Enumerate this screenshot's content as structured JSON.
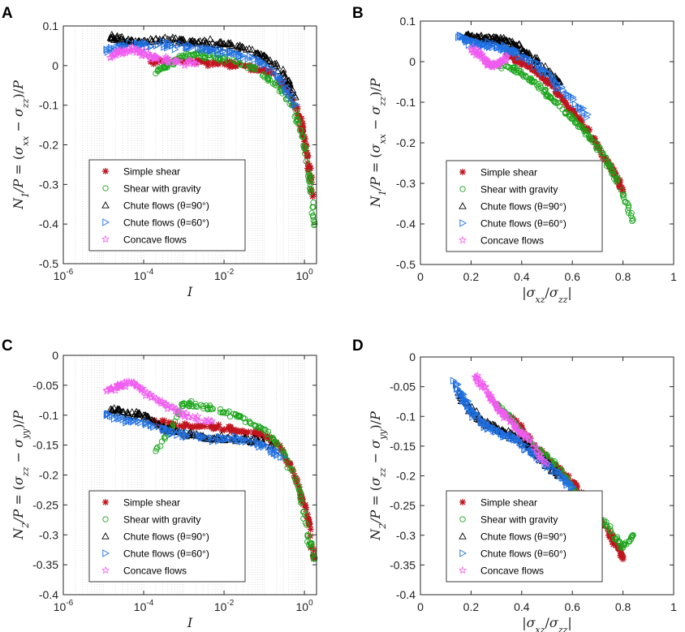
{
  "chart_data": [
    {
      "panel": "A",
      "type": "scatter",
      "xscale": "log",
      "xlim": [
        1e-06,
        2
      ],
      "ylim": [
        -0.5,
        0.1
      ],
      "xticks": [
        1e-06,
        0.0001,
        0.01,
        1
      ],
      "xtick_labels": [
        "10-6",
        "10-4",
        "10-2",
        "100"
      ],
      "yticks": [
        -0.5,
        -0.4,
        -0.3,
        -0.2,
        -0.1,
        0,
        0.1
      ],
      "ytick_labels": [
        "-0.5",
        "-0.4",
        "-0.3",
        "-0.2",
        "-0.1",
        "0",
        "0.1"
      ],
      "xlabel": "I",
      "ylabel": "N1/P = (σxx − σzz)/P",
      "grid": "log-minor",
      "legend_position": "bottom-left",
      "series": [
        {
          "name": "Simple shear",
          "x": [
            0.00015,
            0.001,
            0.004,
            0.015,
            0.05,
            0.15,
            0.4,
            0.8,
            1.0,
            1.3,
            1.6
          ],
          "y": [
            0.01,
            0.012,
            0.008,
            0.003,
            -0.005,
            -0.02,
            -0.06,
            -0.14,
            -0.18,
            -0.26,
            -0.33
          ]
        },
        {
          "name": "Shear with gravity",
          "x": [
            0.0002,
            0.0004,
            0.0008,
            0.002,
            0.006,
            0.02,
            0.06,
            0.2,
            0.5,
            0.9,
            1.4,
            1.8
          ],
          "y": [
            -0.02,
            0.0,
            0.02,
            0.03,
            0.02,
            0.01,
            -0.01,
            -0.05,
            -0.1,
            -0.18,
            -0.3,
            -0.4
          ]
        },
        {
          "name": "Chute flows (θ=90°)",
          "x": [
            1.5e-05,
            3e-05,
            8e-05,
            0.0003,
            0.001,
            0.003,
            0.01,
            0.03,
            0.1,
            0.3,
            0.6
          ],
          "y": [
            0.07,
            0.065,
            0.06,
            0.065,
            0.063,
            0.06,
            0.055,
            0.045,
            0.025,
            -0.02,
            -0.08
          ]
        },
        {
          "name": "Chute flows (θ=60°)",
          "x": [
            1.2e-05,
            3e-05,
            0.0001,
            0.0004,
            0.0015,
            0.005,
            0.02,
            0.08,
            0.25,
            0.6
          ],
          "y": [
            0.04,
            0.05,
            0.055,
            0.05,
            0.045,
            0.04,
            0.03,
            0.01,
            -0.03,
            -0.1
          ]
        },
        {
          "name": "Concave flows",
          "x": [
            1.5e-05,
            2.5e-05,
            5e-05,
            0.0001,
            0.0002,
            0.0006,
            0.002
          ],
          "y": [
            0.02,
            0.035,
            0.04,
            0.03,
            0.02,
            0.01,
            0.005
          ]
        }
      ]
    },
    {
      "panel": "B",
      "type": "scatter",
      "xscale": "linear",
      "xlim": [
        0,
        1
      ],
      "ylim": [
        -0.5,
        0.1
      ],
      "xticks": [
        0,
        0.2,
        0.4,
        0.6,
        0.8,
        1
      ],
      "xtick_labels": [
        "0",
        "0.2",
        "0.4",
        "0.6",
        "0.8",
        "1"
      ],
      "yticks": [
        -0.5,
        -0.4,
        -0.3,
        -0.2,
        -0.1,
        0,
        0.1
      ],
      "ytick_labels": [
        "-0.5",
        "-0.4",
        "-0.3",
        "-0.2",
        "-0.1",
        "0",
        "0.1"
      ],
      "xlabel": "|σxz/σzz|",
      "ylabel": "N1/P = (σxx − σzz)/P",
      "grid": "none",
      "legend_position": "bottom-left",
      "series": [
        {
          "name": "Simple shear",
          "x": [
            0.34,
            0.38,
            0.42,
            0.47,
            0.52,
            0.57,
            0.61,
            0.66,
            0.7,
            0.75,
            0.78,
            0.8
          ],
          "y": [
            0.02,
            0.005,
            -0.01,
            -0.03,
            -0.06,
            -0.1,
            -0.13,
            -0.17,
            -0.21,
            -0.26,
            -0.29,
            -0.32
          ]
        },
        {
          "name": "Shear with gravity",
          "x": [
            0.3,
            0.35,
            0.4,
            0.45,
            0.5,
            0.55,
            0.6,
            0.65,
            0.7,
            0.75,
            0.8,
            0.84
          ],
          "y": [
            -0.005,
            -0.015,
            -0.03,
            -0.05,
            -0.08,
            -0.11,
            -0.14,
            -0.17,
            -0.21,
            -0.26,
            -0.33,
            -0.39
          ]
        },
        {
          "name": "Chute flows (θ=90°)",
          "x": [
            0.18,
            0.22,
            0.26,
            0.3,
            0.34,
            0.38,
            0.42,
            0.48,
            0.55
          ],
          "y": [
            0.065,
            0.06,
            0.06,
            0.055,
            0.05,
            0.04,
            0.02,
            -0.01,
            -0.05
          ]
        },
        {
          "name": "Chute flows (θ=60°)",
          "x": [
            0.15,
            0.19,
            0.23,
            0.27,
            0.32,
            0.37,
            0.43,
            0.5,
            0.58,
            0.66
          ],
          "y": [
            0.06,
            0.05,
            0.045,
            0.04,
            0.035,
            0.025,
            0.005,
            -0.03,
            -0.08,
            -0.13
          ]
        },
        {
          "name": "Concave flows",
          "x": [
            0.2,
            0.23,
            0.26,
            0.28,
            0.31,
            0.34
          ],
          "y": [
            0.03,
            0.02,
            0.0,
            -0.01,
            -0.005,
            0.01
          ]
        }
      ]
    },
    {
      "panel": "C",
      "type": "scatter",
      "xscale": "log",
      "xlim": [
        1e-06,
        2
      ],
      "ylim": [
        -0.4,
        0
      ],
      "xticks": [
        1e-06,
        0.0001,
        0.01,
        1
      ],
      "xtick_labels": [
        "10-6",
        "10-4",
        "10-2",
        "100"
      ],
      "yticks": [
        -0.4,
        -0.35,
        -0.3,
        -0.25,
        -0.2,
        -0.15,
        -0.1,
        -0.05,
        0
      ],
      "ytick_labels": [
        "-0.4",
        "-0.35",
        "-0.3",
        "-0.25",
        "-0.2",
        "-0.15",
        "-0.1",
        "-0.05",
        "0"
      ],
      "xlabel": "I",
      "ylabel": "N2/P = (σzz − σyy)/P",
      "grid": "log-minor",
      "legend_position": "bottom-left",
      "series": [
        {
          "name": "Simple shear",
          "x": [
            0.00015,
            0.0005,
            0.002,
            0.006,
            0.02,
            0.07,
            0.2,
            0.5,
            0.9,
            1.3,
            1.7
          ],
          "y": [
            -0.11,
            -0.115,
            -0.12,
            -0.12,
            -0.125,
            -0.13,
            -0.145,
            -0.19,
            -0.24,
            -0.28,
            -0.34
          ]
        },
        {
          "name": "Shear with gravity",
          "x": [
            0.0002,
            0.0005,
            0.001,
            0.003,
            0.01,
            0.03,
            0.1,
            0.3,
            0.7,
            1.2,
            1.8
          ],
          "y": [
            -0.16,
            -0.12,
            -0.08,
            -0.085,
            -0.095,
            -0.105,
            -0.125,
            -0.16,
            -0.22,
            -0.3,
            -0.34
          ]
        },
        {
          "name": "Chute flows (θ=90°)",
          "x": [
            1.5e-05,
            4e-05,
            0.0001,
            0.0003,
            0.001,
            0.003,
            0.01,
            0.04,
            0.15
          ],
          "y": [
            -0.09,
            -0.095,
            -0.1,
            -0.12,
            -0.13,
            -0.135,
            -0.14,
            -0.14,
            -0.15
          ]
        },
        {
          "name": "Chute flows (θ=60°)",
          "x": [
            1.2e-05,
            4e-05,
            0.00015,
            0.0005,
            0.002,
            0.008,
            0.03,
            0.1,
            0.3
          ],
          "y": [
            -0.1,
            -0.11,
            -0.115,
            -0.13,
            -0.135,
            -0.14,
            -0.14,
            -0.15,
            -0.17
          ]
        },
        {
          "name": "Concave flows",
          "x": [
            1.2e-05,
            2.5e-05,
            5e-05,
            0.0001,
            0.0003,
            0.001,
            0.005
          ],
          "y": [
            -0.06,
            -0.05,
            -0.045,
            -0.06,
            -0.08,
            -0.1,
            -0.11
          ]
        }
      ]
    },
    {
      "panel": "D",
      "type": "scatter",
      "xscale": "linear",
      "xlim": [
        0,
        1
      ],
      "ylim": [
        -0.4,
        0
      ],
      "xticks": [
        0,
        0.2,
        0.4,
        0.6,
        0.8,
        1
      ],
      "xtick_labels": [
        "0",
        "0.2",
        "0.4",
        "0.6",
        "0.8",
        "1"
      ],
      "yticks": [
        -0.4,
        -0.35,
        -0.3,
        -0.25,
        -0.2,
        -0.15,
        -0.1,
        -0.05,
        0
      ],
      "ytick_labels": [
        "-0.4",
        "-0.35",
        "-0.3",
        "-0.25",
        "-0.2",
        "-0.15",
        "-0.1",
        "-0.05",
        "0"
      ],
      "xlabel": "|σxz/σzz|",
      "ylabel": "N2/P = (σzz − σyy)/P",
      "grid": "none",
      "legend_position": "bottom-left",
      "series": [
        {
          "name": "Simple shear",
          "x": [
            0.35,
            0.4,
            0.45,
            0.5,
            0.55,
            0.6,
            0.65,
            0.7,
            0.75,
            0.78,
            0.8
          ],
          "y": [
            -0.1,
            -0.12,
            -0.15,
            -0.17,
            -0.19,
            -0.21,
            -0.24,
            -0.27,
            -0.3,
            -0.32,
            -0.34
          ]
        },
        {
          "name": "Shear with gravity",
          "x": [
            0.3,
            0.35,
            0.4,
            0.45,
            0.5,
            0.55,
            0.6,
            0.65,
            0.7,
            0.75,
            0.8,
            0.84
          ],
          "y": [
            -0.08,
            -0.1,
            -0.13,
            -0.15,
            -0.17,
            -0.19,
            -0.22,
            -0.25,
            -0.27,
            -0.29,
            -0.32,
            -0.3
          ]
        },
        {
          "name": "Chute flows (θ=90°)",
          "x": [
            0.15,
            0.2,
            0.25,
            0.3,
            0.35,
            0.4,
            0.45,
            0.5,
            0.55
          ],
          "y": [
            -0.06,
            -0.09,
            -0.11,
            -0.12,
            -0.13,
            -0.14,
            -0.16,
            -0.18,
            -0.2
          ]
        },
        {
          "name": "Chute flows (θ=60°)",
          "x": [
            0.13,
            0.17,
            0.2,
            0.24,
            0.28,
            0.33,
            0.38,
            0.44,
            0.5,
            0.56,
            0.6
          ],
          "y": [
            -0.04,
            -0.07,
            -0.09,
            -0.11,
            -0.12,
            -0.13,
            -0.14,
            -0.16,
            -0.18,
            -0.2,
            -0.22
          ]
        },
        {
          "name": "Concave flows",
          "x": [
            0.22,
            0.25,
            0.28,
            0.31,
            0.34,
            0.38,
            0.43,
            0.5
          ],
          "y": [
            -0.035,
            -0.05,
            -0.07,
            -0.09,
            -0.1,
            -0.12,
            -0.14,
            -0.18
          ]
        }
      ]
    }
  ],
  "legend": {
    "items": [
      "Simple shear",
      "Shear with gravity",
      "Chute flows (θ=90°)",
      "Chute flows (θ=60°)",
      "Concave flows"
    ]
  },
  "colors": {
    "Simple shear": "#c0141e",
    "Shear with gravity": "#1aa51a",
    "Chute flows (θ=90°)": "#000000",
    "Chute flows (θ=60°)": "#1f6fe0",
    "Concave flows": "#f05cf0"
  },
  "markers": {
    "Simple shear": "asterisk",
    "Shear with gravity": "circle",
    "Chute flows (θ=90°)": "triangle-up",
    "Chute flows (θ=60°)": "triangle-right",
    "Concave flows": "star"
  }
}
